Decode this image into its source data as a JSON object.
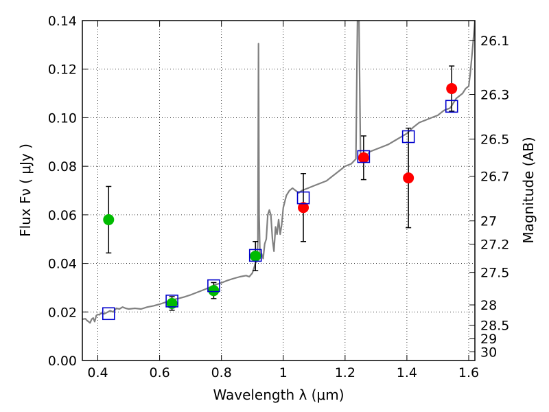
{
  "chart_data": {
    "type": "scatter",
    "title": "",
    "xlabel": "Wavelength  λ (μm)",
    "ylabel": "Flux  Fν  ( μJy )",
    "ylabel_right": "Magnitude (AB)",
    "xlim": [
      0.35,
      1.62
    ],
    "ylim": [
      0.0,
      0.14
    ],
    "grid": true,
    "x_ticks": [
      {
        "value": 0.4,
        "label": "0.4"
      },
      {
        "value": 0.6,
        "label": "0.6"
      },
      {
        "value": 0.8,
        "label": "0.8"
      },
      {
        "value": 1.0,
        "label": "1"
      },
      {
        "value": 1.2,
        "label": "1.2"
      },
      {
        "value": 1.4,
        "label": "1.4"
      },
      {
        "value": 1.6,
        "label": "1.6"
      }
    ],
    "y_ticks": [
      {
        "value": 0.0,
        "label": "0.00"
      },
      {
        "value": 0.02,
        "label": "0.02"
      },
      {
        "value": 0.04,
        "label": "0.04"
      },
      {
        "value": 0.06,
        "label": "0.06"
      },
      {
        "value": 0.08,
        "label": "0.08"
      },
      {
        "value": 0.1,
        "label": "0.10"
      },
      {
        "value": 0.12,
        "label": "0.12"
      },
      {
        "value": 0.14,
        "label": "0.14"
      }
    ],
    "right_ticks": [
      {
        "label": "26.1",
        "flux": 0.1318
      },
      {
        "label": "26.3",
        "flux": 0.1096
      },
      {
        "label": "26.5",
        "flux": 0.0912
      },
      {
        "label": "26.7",
        "flux": 0.0759
      },
      {
        "label": "27",
        "flux": 0.0575
      },
      {
        "label": "27.2",
        "flux": 0.0479
      },
      {
        "label": "27.5",
        "flux": 0.0363
      },
      {
        "label": "28",
        "flux": 0.0229
      },
      {
        "label": "28.5",
        "flux": 0.0145
      },
      {
        "label": "29",
        "flux": 0.0091
      },
      {
        "label": "30",
        "flux": 0.0036
      }
    ],
    "series": [
      {
        "color": "#808080",
        "kind": "line",
        "points": [
          [
            0.35,
            0.017
          ],
          [
            0.36,
            0.0172
          ],
          [
            0.365,
            0.0165
          ],
          [
            0.37,
            0.016
          ],
          [
            0.375,
            0.0155
          ],
          [
            0.38,
            0.017
          ],
          [
            0.385,
            0.0175
          ],
          [
            0.39,
            0.016
          ],
          [
            0.395,
            0.0185
          ],
          [
            0.4,
            0.019
          ],
          [
            0.405,
            0.0188
          ],
          [
            0.41,
            0.0195
          ],
          [
            0.42,
            0.0192
          ],
          [
            0.43,
            0.0198
          ],
          [
            0.44,
            0.0205
          ],
          [
            0.45,
            0.02
          ],
          [
            0.46,
            0.0215
          ],
          [
            0.47,
            0.0212
          ],
          [
            0.48,
            0.022
          ],
          [
            0.49,
            0.0215
          ],
          [
            0.5,
            0.0212
          ],
          [
            0.52,
            0.0215
          ],
          [
            0.54,
            0.0212
          ],
          [
            0.56,
            0.022
          ],
          [
            0.58,
            0.0225
          ],
          [
            0.6,
            0.0232
          ],
          [
            0.62,
            0.024
          ],
          [
            0.64,
            0.025
          ],
          [
            0.66,
            0.0255
          ],
          [
            0.68,
            0.0262
          ],
          [
            0.7,
            0.027
          ],
          [
            0.72,
            0.028
          ],
          [
            0.74,
            0.029
          ],
          [
            0.76,
            0.03
          ],
          [
            0.78,
            0.0312
          ],
          [
            0.8,
            0.032
          ],
          [
            0.82,
            0.033
          ],
          [
            0.84,
            0.0338
          ],
          [
            0.86,
            0.0345
          ],
          [
            0.88,
            0.035
          ],
          [
            0.89,
            0.0345
          ],
          [
            0.9,
            0.036
          ],
          [
            0.905,
            0.038
          ],
          [
            0.91,
            0.04
          ],
          [
            0.915,
            0.041
          ],
          [
            0.918,
            0.05
          ],
          [
            0.92,
            0.1305
          ],
          [
            0.922,
            0.06
          ],
          [
            0.925,
            0.042
          ],
          [
            0.93,
            0.044
          ],
          [
            0.935,
            0.042
          ],
          [
            0.94,
            0.048
          ],
          [
            0.945,
            0.05
          ],
          [
            0.95,
            0.06
          ],
          [
            0.955,
            0.062
          ],
          [
            0.96,
            0.06
          ],
          [
            0.965,
            0.05
          ],
          [
            0.97,
            0.045
          ],
          [
            0.975,
            0.055
          ],
          [
            0.98,
            0.052
          ],
          [
            0.985,
            0.058
          ],
          [
            0.99,
            0.052
          ],
          [
            0.995,
            0.056
          ],
          [
            1.0,
            0.063
          ],
          [
            1.01,
            0.068
          ],
          [
            1.02,
            0.07
          ],
          [
            1.03,
            0.071
          ],
          [
            1.04,
            0.07
          ],
          [
            1.05,
            0.069
          ],
          [
            1.06,
            0.07
          ],
          [
            1.08,
            0.071
          ],
          [
            1.1,
            0.072
          ],
          [
            1.12,
            0.073
          ],
          [
            1.14,
            0.074
          ],
          [
            1.16,
            0.076
          ],
          [
            1.18,
            0.078
          ],
          [
            1.2,
            0.08
          ],
          [
            1.22,
            0.081
          ],
          [
            1.235,
            0.083
          ],
          [
            1.24,
            0.14
          ],
          [
            1.245,
            0.14
          ],
          [
            1.25,
            0.083
          ],
          [
            1.26,
            0.083
          ],
          [
            1.28,
            0.086
          ],
          [
            1.3,
            0.087
          ],
          [
            1.32,
            0.088
          ],
          [
            1.34,
            0.089
          ],
          [
            1.36,
            0.0905
          ],
          [
            1.38,
            0.092
          ],
          [
            1.4,
            0.0935
          ],
          [
            1.42,
            0.096
          ],
          [
            1.44,
            0.098
          ],
          [
            1.46,
            0.099
          ],
          [
            1.48,
            0.1
          ],
          [
            1.5,
            0.101
          ],
          [
            1.52,
            0.103
          ],
          [
            1.54,
            0.104
          ],
          [
            1.56,
            0.108
          ],
          [
            1.58,
            0.11
          ],
          [
            1.59,
            0.112
          ],
          [
            1.6,
            0.113
          ],
          [
            1.605,
            0.118
          ],
          [
            1.61,
            0.125
          ],
          [
            1.615,
            0.132
          ],
          [
            1.62,
            0.14
          ]
        ]
      },
      {
        "color": "#00bb00",
        "kind": "points",
        "points": [
          {
            "x": 0.435,
            "y": 0.058,
            "err": 0.0137
          },
          {
            "x": 0.64,
            "y": 0.0235,
            "err": 0.0028
          },
          {
            "x": 0.775,
            "y": 0.0288,
            "err": 0.0033
          },
          {
            "x": 0.91,
            "y": 0.043,
            "err": 0.006
          }
        ]
      },
      {
        "color": "#ff0000",
        "kind": "points",
        "points": [
          {
            "x": 1.065,
            "y": 0.063,
            "err": 0.014
          },
          {
            "x": 1.26,
            "y": 0.0835,
            "err": 0.009
          },
          {
            "x": 1.405,
            "y": 0.0752,
            "err": 0.0205
          },
          {
            "x": 1.545,
            "y": 0.112,
            "err": 0.0093
          }
        ]
      },
      {
        "color": "#0000cc",
        "kind": "open-squares",
        "points": [
          {
            "x": 0.435,
            "y": 0.0193
          },
          {
            "x": 0.64,
            "y": 0.0245
          },
          {
            "x": 0.775,
            "y": 0.0308
          },
          {
            "x": 0.91,
            "y": 0.0433
          },
          {
            "x": 1.065,
            "y": 0.067
          },
          {
            "x": 1.26,
            "y": 0.084
          },
          {
            "x": 1.405,
            "y": 0.0922
          },
          {
            "x": 1.545,
            "y": 0.1047
          }
        ]
      }
    ]
  }
}
